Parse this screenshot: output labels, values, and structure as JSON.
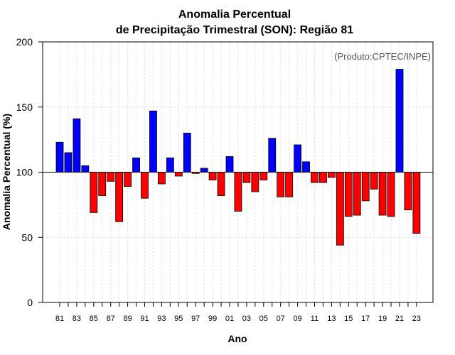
{
  "chart_data": {
    "type": "bar",
    "title_line1": "Anomalia Percentual",
    "title_line2": "de Precipitação Trimestral (SON): Região 81",
    "credit": "(Produto:CPTEC/INPE)",
    "xlabel": "Ano",
    "ylabel": "Anomalia Percentual (%)",
    "ylim": [
      0,
      200
    ],
    "yticks": [
      0,
      50,
      100,
      150,
      200
    ],
    "baseline": 100,
    "grid": true,
    "colors": {
      "above": "#0000ff",
      "below": "#ff0000",
      "edge": "#000000"
    },
    "categories": [
      "81",
      "82",
      "83",
      "84",
      "85",
      "86",
      "87",
      "88",
      "89",
      "90",
      "91",
      "92",
      "93",
      "94",
      "95",
      "96",
      "97",
      "98",
      "99",
      "00",
      "01",
      "02",
      "03",
      "04",
      "05",
      "06",
      "07",
      "08",
      "09",
      "10",
      "11",
      "12",
      "13",
      "14",
      "15",
      "16",
      "17",
      "18",
      "19",
      "20",
      "21",
      "22",
      "23"
    ],
    "xtick_labels": [
      "81",
      "83",
      "85",
      "87",
      "89",
      "91",
      "93",
      "95",
      "97",
      "99",
      "01",
      "03",
      "05",
      "07",
      "09",
      "11",
      "13",
      "15",
      "17",
      "19",
      "21",
      "23"
    ],
    "values": [
      123,
      115,
      141,
      105,
      69,
      82,
      93,
      62,
      89,
      111,
      80,
      147,
      91,
      111,
      97,
      130,
      99,
      103,
      94,
      82,
      112,
      70,
      92,
      85,
      94,
      126,
      81,
      81,
      121,
      108,
      92,
      92,
      96,
      44,
      66,
      67,
      78,
      87,
      67,
      66,
      179,
      71,
      53
    ]
  }
}
